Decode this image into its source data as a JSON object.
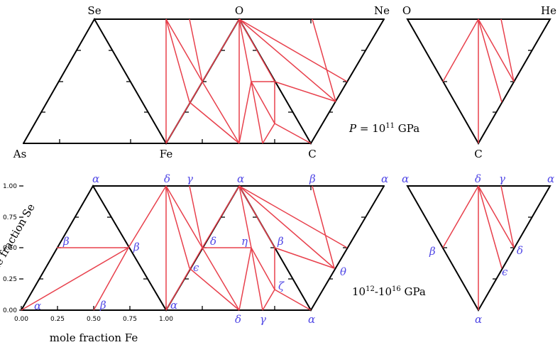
{
  "top_row": {
    "vertex_labels": [
      "Se",
      "O",
      "Ne",
      "O",
      "He",
      "As",
      "Fe",
      "C",
      "C"
    ],
    "pressure_symbol": "P",
    "pressure_eq": " = 10",
    "pressure_exp": "11",
    "pressure_unit": " GPa"
  },
  "bottom_row": {
    "phase_labels": [
      "α",
      "δ",
      "γ",
      "α",
      "β",
      "α",
      "α",
      "δ",
      "γ",
      "α",
      "β",
      "β",
      "δ",
      "η",
      "β",
      "ζ",
      "θ",
      "ϵ",
      "ϵ",
      "δ",
      "α",
      "β",
      "α",
      "δ",
      "γ",
      "α",
      "α"
    ],
    "pressure_base": "10",
    "pressure_exp_1": "12",
    "pressure_dash": "-10",
    "pressure_exp_2": "16",
    "pressure_unit": " GPa",
    "y_axis_label": "mole fraction Se",
    "x_axis_label": "mole fraction Fe",
    "y_ticks": [
      "1.00",
      "0.75",
      "0.50",
      "0.25",
      "0.00"
    ],
    "x_ticks": [
      "0.00",
      "0.25",
      "0.50",
      "0.75",
      "1.00"
    ]
  },
  "colors": {
    "tie_line": "#e8404c",
    "phase_label": "#4f46e5",
    "frame": "#000000"
  }
}
